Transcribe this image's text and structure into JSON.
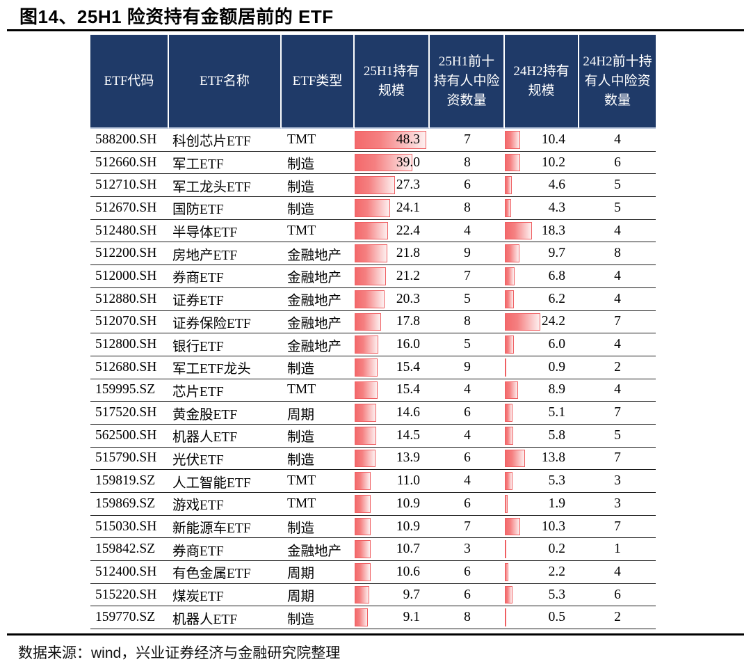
{
  "title": "图14、25H1 险资持有金额居前的 ETF",
  "footer": "数据来源：wind，兴业证券经济与金融研究院整理",
  "colors": {
    "header_bg": "#1f3a68",
    "header_text": "#ffffff",
    "bar_fill_left": "#f3696b",
    "bar_fill_right": "#fdf0f0",
    "bar_border": "#ef5f62",
    "rule": "#000000"
  },
  "chart_data": {
    "type": "table",
    "title": "图14、25H1 险资持有金额居前的 ETF",
    "columns": [
      "ETF代码",
      "ETF名称",
      "ETF类型",
      "25H1持有规模",
      "25H1前十持有人中险资数量",
      "24H2持有规模",
      "24H2前十持有人中险资数量"
    ],
    "bar_scale_max": 50.6,
    "rows": [
      {
        "code": "588200.SH",
        "name": "科创芯片ETF",
        "type": "TMT",
        "h25": "48.3",
        "cnt25": 7,
        "h24": "10.4",
        "cnt24": 4
      },
      {
        "code": "512660.SH",
        "name": "军工ETF",
        "type": "制造",
        "h25": "39.0",
        "cnt25": 8,
        "h24": "10.2",
        "cnt24": 6
      },
      {
        "code": "512710.SH",
        "name": "军工龙头ETF",
        "type": "制造",
        "h25": "27.3",
        "cnt25": 6,
        "h24": "4.6",
        "cnt24": 5
      },
      {
        "code": "512670.SH",
        "name": "国防ETF",
        "type": "制造",
        "h25": "24.1",
        "cnt25": 8,
        "h24": "4.3",
        "cnt24": 5
      },
      {
        "code": "512480.SH",
        "name": "半导体ETF",
        "type": "TMT",
        "h25": "22.4",
        "cnt25": 4,
        "h24": "18.3",
        "cnt24": 4
      },
      {
        "code": "512200.SH",
        "name": "房地产ETF",
        "type": "金融地产",
        "h25": "21.8",
        "cnt25": 9,
        "h24": "9.7",
        "cnt24": 8
      },
      {
        "code": "512000.SH",
        "name": "券商ETF",
        "type": "金融地产",
        "h25": "21.2",
        "cnt25": 7,
        "h24": "6.8",
        "cnt24": 4
      },
      {
        "code": "512880.SH",
        "name": "证券ETF",
        "type": "金融地产",
        "h25": "20.3",
        "cnt25": 5,
        "h24": "6.2",
        "cnt24": 4
      },
      {
        "code": "512070.SH",
        "name": "证券保险ETF",
        "type": "金融地产",
        "h25": "17.8",
        "cnt25": 8,
        "h24": "24.2",
        "cnt24": 7
      },
      {
        "code": "512800.SH",
        "name": "银行ETF",
        "type": "金融地产",
        "h25": "16.0",
        "cnt25": 5,
        "h24": "6.0",
        "cnt24": 4
      },
      {
        "code": "512680.SH",
        "name": "军工ETF龙头",
        "type": "制造",
        "h25": "15.4",
        "cnt25": 9,
        "h24": "0.9",
        "cnt24": 2
      },
      {
        "code": "159995.SZ",
        "name": "芯片ETF",
        "type": "TMT",
        "h25": "15.4",
        "cnt25": 4,
        "h24": "8.9",
        "cnt24": 4
      },
      {
        "code": "517520.SH",
        "name": "黄金股ETF",
        "type": "周期",
        "h25": "14.6",
        "cnt25": 6,
        "h24": "5.1",
        "cnt24": 7
      },
      {
        "code": "562500.SH",
        "name": "机器人ETF",
        "type": "制造",
        "h25": "14.5",
        "cnt25": 4,
        "h24": "5.8",
        "cnt24": 5
      },
      {
        "code": "515790.SH",
        "name": "光伏ETF",
        "type": "制造",
        "h25": "13.9",
        "cnt25": 6,
        "h24": "13.8",
        "cnt24": 7
      },
      {
        "code": "159819.SZ",
        "name": "人工智能ETF",
        "type": "TMT",
        "h25": "11.0",
        "cnt25": 4,
        "h24": "5.3",
        "cnt24": 3
      },
      {
        "code": "159869.SZ",
        "name": "游戏ETF",
        "type": "TMT",
        "h25": "10.9",
        "cnt25": 6,
        "h24": "1.9",
        "cnt24": 3
      },
      {
        "code": "515030.SH",
        "name": "新能源车ETF",
        "type": "制造",
        "h25": "10.9",
        "cnt25": 7,
        "h24": "10.3",
        "cnt24": 7
      },
      {
        "code": "159842.SZ",
        "name": "券商ETF",
        "type": "金融地产",
        "h25": "10.7",
        "cnt25": 3,
        "h24": "0.2",
        "cnt24": 1
      },
      {
        "code": "512400.SH",
        "name": "有色金属ETF",
        "type": "周期",
        "h25": "10.6",
        "cnt25": 6,
        "h24": "2.2",
        "cnt24": 4
      },
      {
        "code": "515220.SH",
        "name": "煤炭ETF",
        "type": "周期",
        "h25": "9.7",
        "cnt25": 6,
        "h24": "5.3",
        "cnt24": 6
      },
      {
        "code": "159770.SZ",
        "name": "机器人ETF",
        "type": "制造",
        "h25": "9.1",
        "cnt25": 8,
        "h24": "0.5",
        "cnt24": 2
      }
    ]
  }
}
